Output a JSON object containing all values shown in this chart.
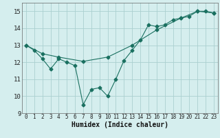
{
  "title": "",
  "xlabel": "Humidex (Indice chaleur)",
  "line1_x": [
    0,
    1,
    2,
    3,
    4,
    5,
    6,
    7,
    8,
    9,
    10,
    11,
    12,
    13,
    14,
    15,
    16,
    17,
    18,
    19,
    20,
    21,
    22,
    23
  ],
  "line1_y": [
    13.0,
    12.7,
    12.2,
    11.6,
    12.2,
    12.0,
    11.8,
    9.5,
    10.4,
    10.5,
    10.0,
    11.0,
    12.1,
    12.7,
    13.3,
    14.2,
    14.1,
    14.2,
    14.5,
    14.6,
    14.7,
    15.0,
    15.0,
    14.9
  ],
  "line2_x": [
    0,
    2,
    4,
    7,
    10,
    13,
    16,
    19,
    21,
    23
  ],
  "line2_y": [
    13.0,
    12.5,
    12.3,
    12.05,
    12.3,
    13.0,
    13.9,
    14.6,
    15.0,
    14.9
  ],
  "line_color": "#1a7060",
  "bg_color": "#d5eeee",
  "grid_color": "#aad0d0",
  "ylim": [
    9,
    15.5
  ],
  "xlim": [
    -0.5,
    23.5
  ],
  "yticks": [
    9,
    10,
    11,
    12,
    13,
    14,
    15
  ],
  "xticks": [
    0,
    1,
    2,
    3,
    4,
    5,
    6,
    7,
    8,
    9,
    10,
    11,
    12,
    13,
    14,
    15,
    16,
    17,
    18,
    19,
    20,
    21,
    22,
    23
  ],
  "marker": "D",
  "markersize": 2.5,
  "linewidth": 0.8,
  "xlabel_fontsize": 7,
  "tick_fontsize": 5.5,
  "ytick_fontsize": 6.5
}
